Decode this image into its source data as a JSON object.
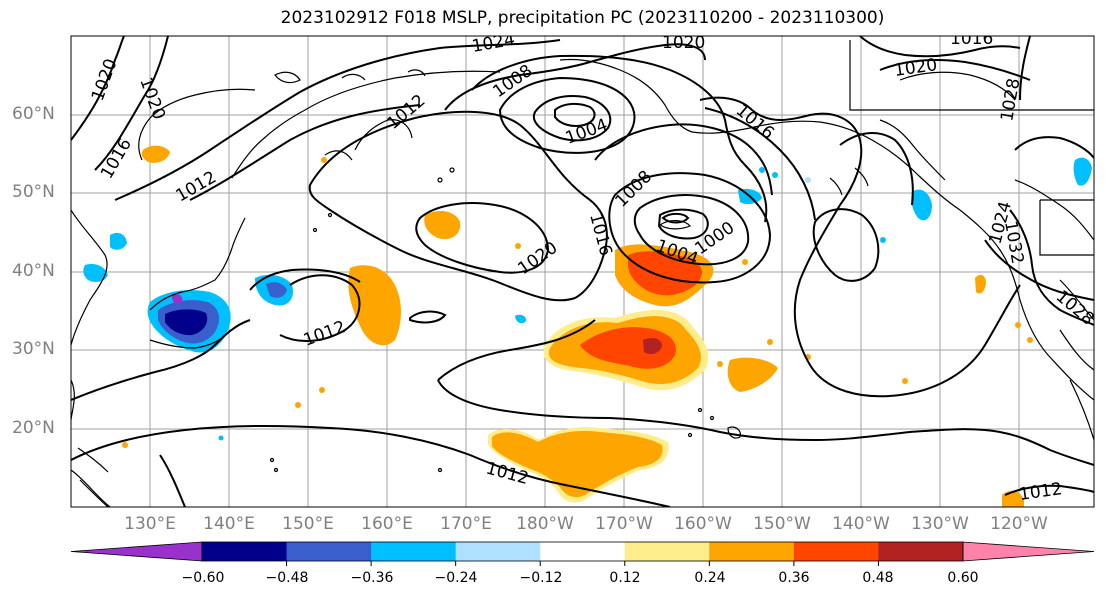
{
  "title": "2023102912 F018 MSLP, precipitation PC (2023110200 - 2023110300)",
  "lat_labels": [
    "60°N",
    "50°N",
    "40°N",
    "30°N",
    "20°N"
  ],
  "lon_labels": [
    "130°E",
    "140°E",
    "150°E",
    "160°E",
    "170°E",
    "180°W",
    "170°W",
    "160°W",
    "150°W",
    "140°W",
    "130°W",
    "120°W"
  ],
  "isobar_labels": [
    "1024",
    "1020",
    "1016",
    "1020",
    "1028",
    "1020",
    "1020",
    "1016",
    "1012",
    "1012",
    "1008",
    "1004",
    "1016",
    "1008",
    "1004",
    "1000",
    "1016",
    "1020",
    "1012",
    "1012",
    "1032",
    "1024",
    "1028",
    "1012"
  ],
  "colorbar": {
    "labels": [
      "−0.60",
      "−0.48",
      "−0.36",
      "−0.24",
      "−0.12",
      "0.12",
      "0.24",
      "0.36",
      "0.48",
      "0.60"
    ],
    "colors": [
      "#9932cc",
      "#00008b",
      "#3a5fcd",
      "#00bfff",
      "#b0e0ff",
      "#ffffff",
      "#ffec8b",
      "#ffa500",
      "#ff4500",
      "#b22222",
      "#ff82ab"
    ]
  }
}
